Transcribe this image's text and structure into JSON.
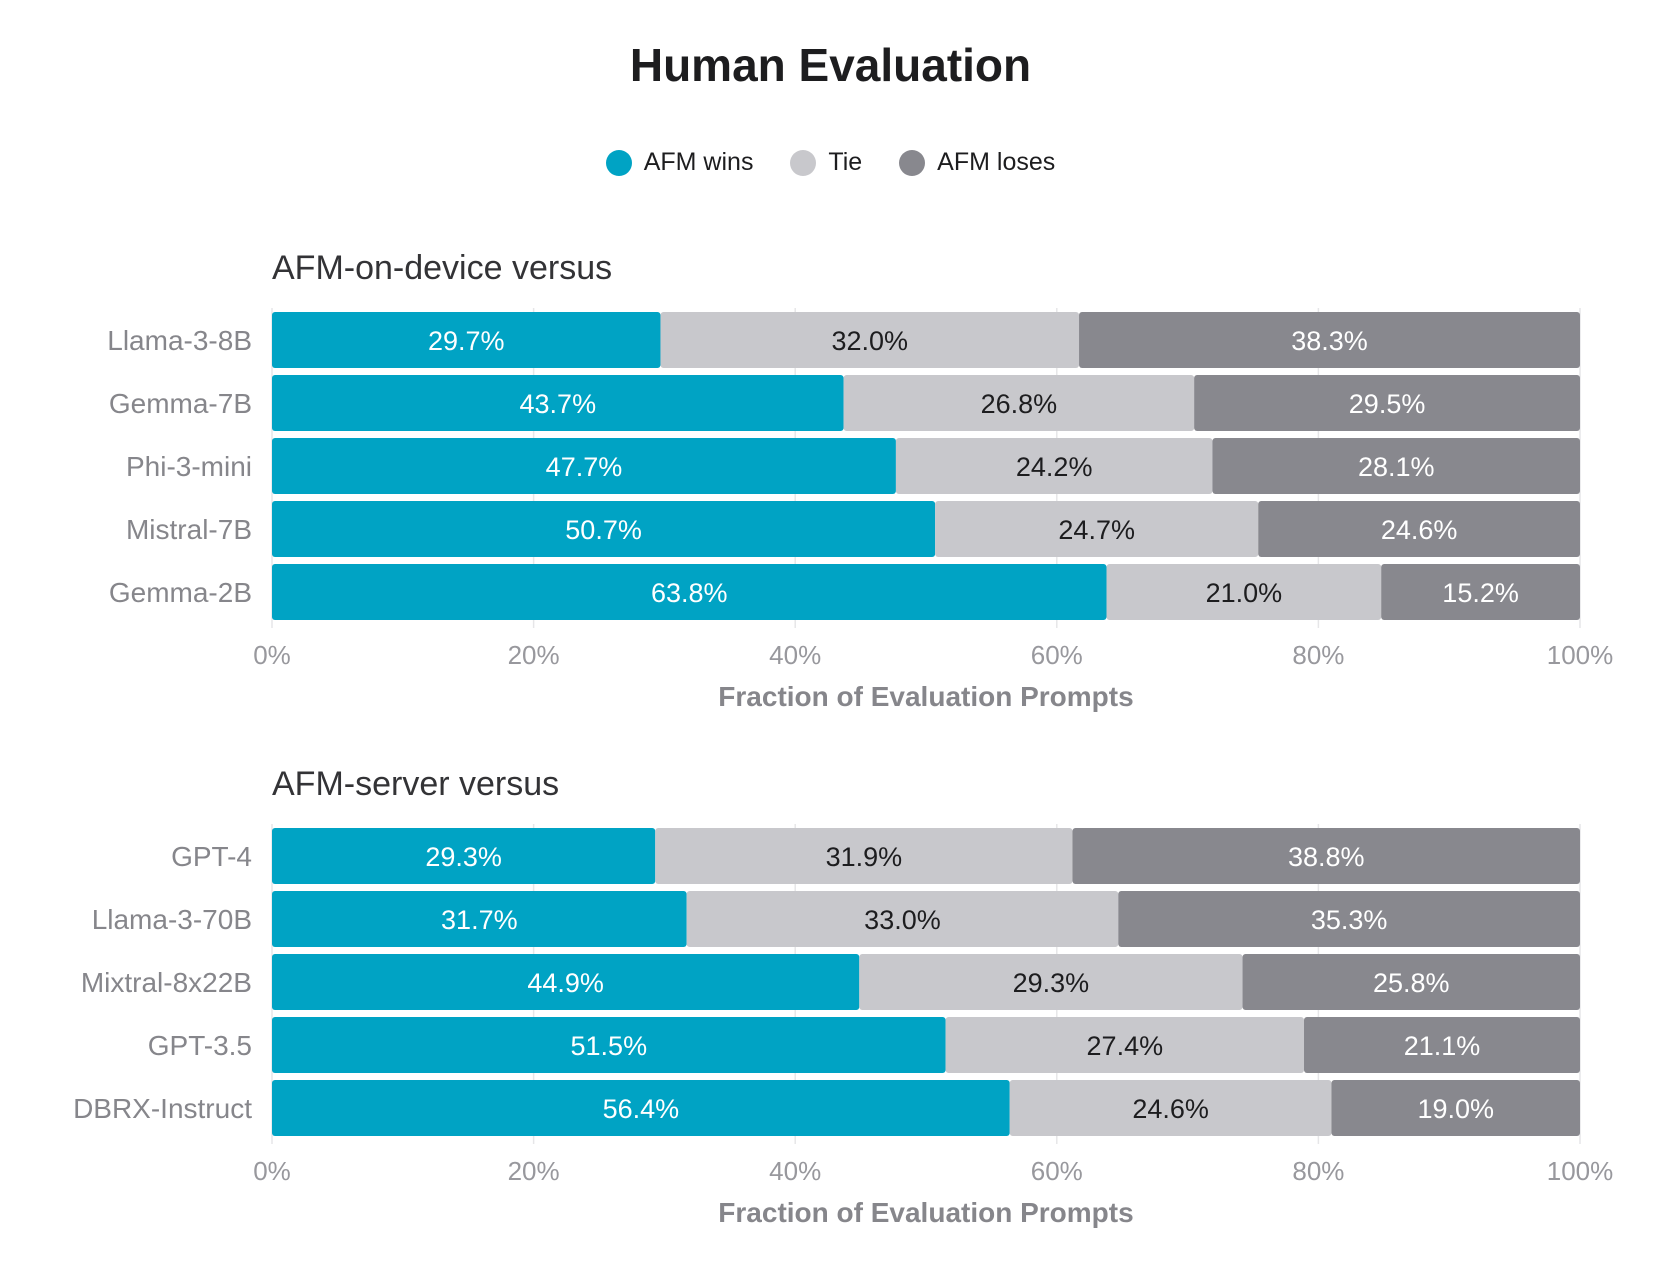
{
  "title": "Human Evaluation",
  "legend": [
    {
      "label": "AFM wins",
      "color": "#00a3c4"
    },
    {
      "label": "Tie",
      "color": "#c8c8cc"
    },
    {
      "label": "AFM loses",
      "color": "#88888e"
    }
  ],
  "chart_data": [
    {
      "type": "bar",
      "orientation": "horizontal",
      "stacked": true,
      "title": "AFM-on-device versus",
      "xlabel": "Fraction of Evaluation Prompts",
      "ylabel": "",
      "xlim": [
        0,
        100
      ],
      "xticks": [
        "0%",
        "20%",
        "40%",
        "60%",
        "80%",
        "100%"
      ],
      "categories": [
        "Llama-3-8B",
        "Gemma-7B",
        "Phi-3-mini",
        "Mistral-7B",
        "Gemma-2B"
      ],
      "series": [
        {
          "name": "AFM wins",
          "values": [
            29.7,
            43.7,
            47.7,
            50.7,
            63.8
          ],
          "labels": [
            "29.7%",
            "43.7%",
            "47.7%",
            "50.7%",
            "63.8%"
          ]
        },
        {
          "name": "Tie",
          "values": [
            32.0,
            26.8,
            24.2,
            24.7,
            21.0
          ],
          "labels": [
            "32.0%",
            "26.8%",
            "24.2%",
            "24.7%",
            "21.0%"
          ]
        },
        {
          "name": "AFM loses",
          "values": [
            38.3,
            29.5,
            28.1,
            24.6,
            15.2
          ],
          "labels": [
            "38.3%",
            "29.5%",
            "28.1%",
            "24.6%",
            "15.2%"
          ]
        }
      ]
    },
    {
      "type": "bar",
      "orientation": "horizontal",
      "stacked": true,
      "title": "AFM-server versus",
      "xlabel": "Fraction of Evaluation Prompts",
      "ylabel": "",
      "xlim": [
        0,
        100
      ],
      "xticks": [
        "0%",
        "20%",
        "40%",
        "60%",
        "80%",
        "100%"
      ],
      "categories": [
        "GPT-4",
        "Llama-3-70B",
        "Mixtral-8x22B",
        "GPT-3.5",
        "DBRX-Instruct"
      ],
      "series": [
        {
          "name": "AFM wins",
          "values": [
            29.3,
            31.7,
            44.9,
            51.5,
            56.4
          ],
          "labels": [
            "29.3%",
            "31.7%",
            "44.9%",
            "51.5%",
            "56.4%"
          ]
        },
        {
          "name": "Tie",
          "values": [
            31.9,
            33.0,
            29.3,
            27.4,
            24.6
          ],
          "labels": [
            "31.9%",
            "33.0%",
            "29.3%",
            "27.4%",
            "24.6%"
          ]
        },
        {
          "name": "AFM loses",
          "values": [
            38.8,
            35.3,
            25.8,
            21.1,
            19.0
          ],
          "labels": [
            "38.8%",
            "35.3%",
            "25.8%",
            "21.1%",
            "19.0%"
          ]
        }
      ]
    }
  ]
}
